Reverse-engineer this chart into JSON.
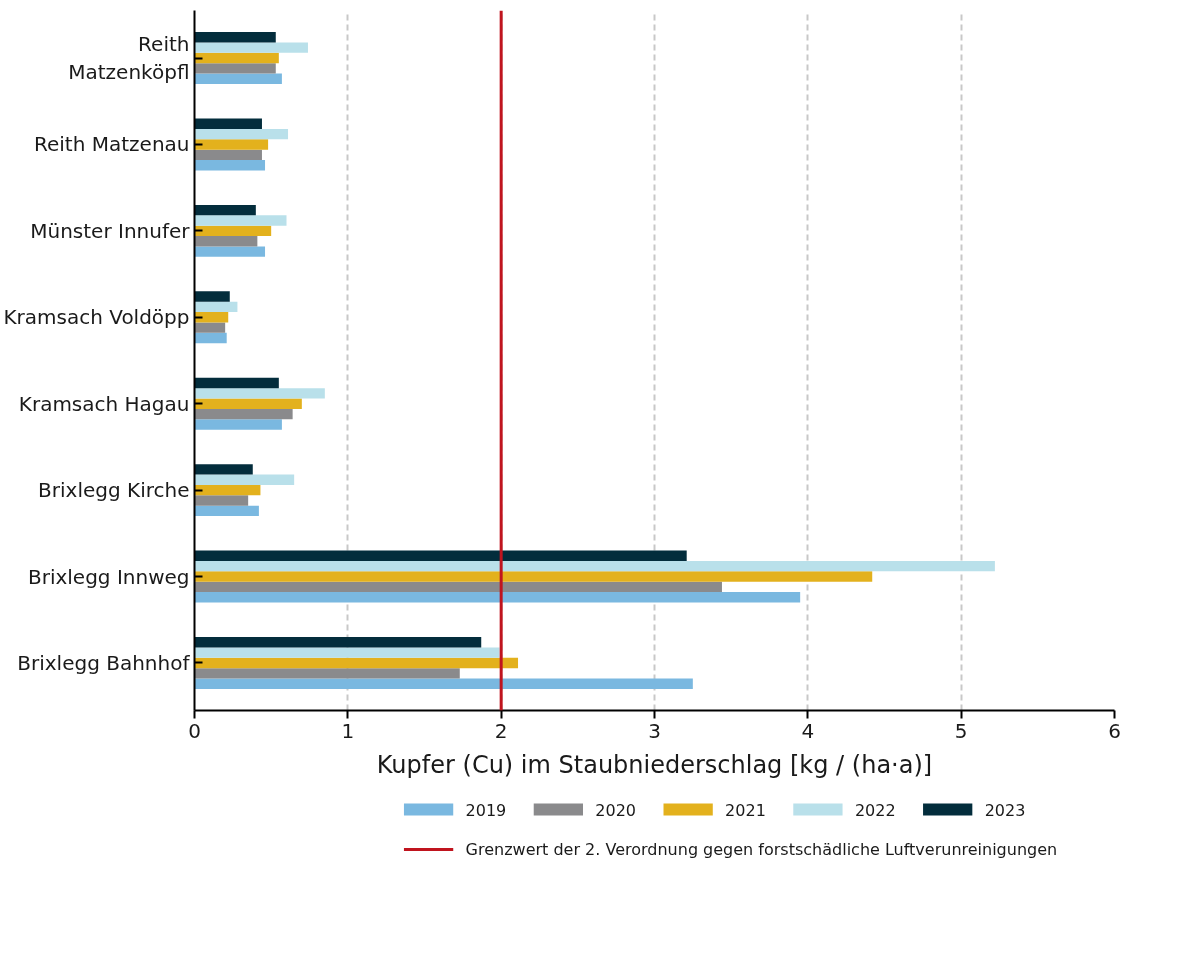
{
  "chart_data": {
    "type": "bar",
    "orientation": "horizontal",
    "xlabel": "Kupfer (Cu) im Staubniederschlag [kg / (ha·a)]",
    "categories": [
      "Reith Matzenköpfl",
      "Reith Matzenau",
      "Münster Innufer",
      "Kramsach Voldöpp",
      "Kramsach Hagau",
      "Brixlegg Kirche",
      "Brixlegg Innweg",
      "Brixlegg Bahnhof"
    ],
    "series": [
      {
        "name": "2019",
        "color": "#7ab8e0",
        "values": [
          0.57,
          0.46,
          0.46,
          0.21,
          0.57,
          0.42,
          3.95,
          3.25
        ]
      },
      {
        "name": "2020",
        "color": "#8a8a8c",
        "values": [
          0.53,
          0.44,
          0.41,
          0.2,
          0.64,
          0.35,
          3.44,
          1.73
        ]
      },
      {
        "name": "2021",
        "color": "#e3b11d",
        "values": [
          0.55,
          0.48,
          0.5,
          0.22,
          0.7,
          0.43,
          4.42,
          2.11
        ]
      },
      {
        "name": "2022",
        "color": "#b9e0ea",
        "values": [
          0.74,
          0.61,
          0.6,
          0.28,
          0.85,
          0.65,
          5.22,
          1.99
        ]
      },
      {
        "name": "2023",
        "color": "#032d3c",
        "values": [
          0.53,
          0.44,
          0.4,
          0.23,
          0.55,
          0.38,
          3.21,
          1.87
        ]
      }
    ],
    "xlim": [
      0,
      6
    ],
    "xticks": [
      0,
      1,
      2,
      3,
      4,
      5,
      6
    ],
    "grid": "x",
    "legend": "bottom",
    "ref_lines": [
      {
        "axis": "x",
        "value": 2,
        "label": "Grenzwert der 2. Verordnung gegen forstschädliche Luftverunreinigungen",
        "color": "#c0141e",
        "line_style": "solid"
      }
    ]
  }
}
